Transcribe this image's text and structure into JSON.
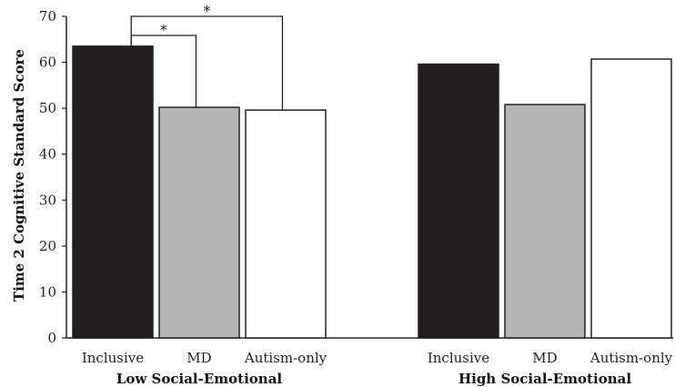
{
  "chart_data": {
    "type": "bar",
    "ylabel": "Time 2 Cognitive Standard Score",
    "ylim": [
      0,
      70
    ],
    "yticks": [
      0,
      10,
      20,
      30,
      40,
      50,
      60,
      70
    ],
    "grid": false,
    "legend": "none",
    "groups": [
      {
        "name": "Low Social-Emotional",
        "categories": [
          "Inclusive",
          "MD",
          "Autism-only"
        ],
        "values": [
          63.5,
          50.2,
          49.6
        ]
      },
      {
        "name": "High Social-Emotional",
        "categories": [
          "Inclusive",
          "MD",
          "Autism-only"
        ],
        "values": [
          59.6,
          50.8,
          60.7
        ]
      }
    ],
    "bar_colors": [
      "#231f20",
      "#b5b5b5",
      "#ffffff"
    ],
    "annotations": [
      {
        "label": "*",
        "group": 0,
        "from": 0,
        "to": 1
      },
      {
        "label": "*",
        "group": 0,
        "from": 0,
        "to": 2
      }
    ]
  }
}
